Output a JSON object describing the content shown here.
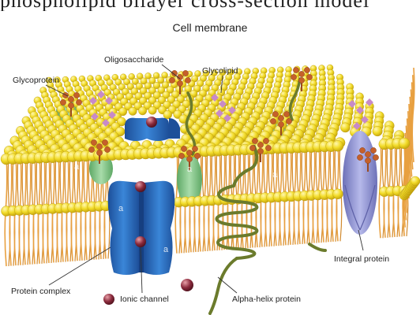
{
  "diagram": {
    "top_text": "phospholipid bilayer cross-section model",
    "title": "Cell membrane",
    "labels": {
      "glycoprotein": "Glycoprotein",
      "oligosaccharide": "Oligosaccharide",
      "glycolipid": "Glycolipid",
      "integral_protein": "Integral protein",
      "protein_complex": "Protein complex",
      "ionic_channel": "Ionic channel",
      "alpha_helix_protein": "Alpha-helix protein"
    },
    "watermark": "a",
    "colors": {
      "lipid_head": "#f2dc2a",
      "lipid_tail": "#e8a040",
      "channel_protein": "#2a6fc0",
      "integral_protein": "#8f93d4",
      "glycoprotein": "#7cc080",
      "alpha_helix": "#6b7b2c",
      "oligosaccharide": "#c5602a",
      "glycolipid_sugar": "#c78ac8",
      "ion": "#8a2a3c"
    }
  }
}
